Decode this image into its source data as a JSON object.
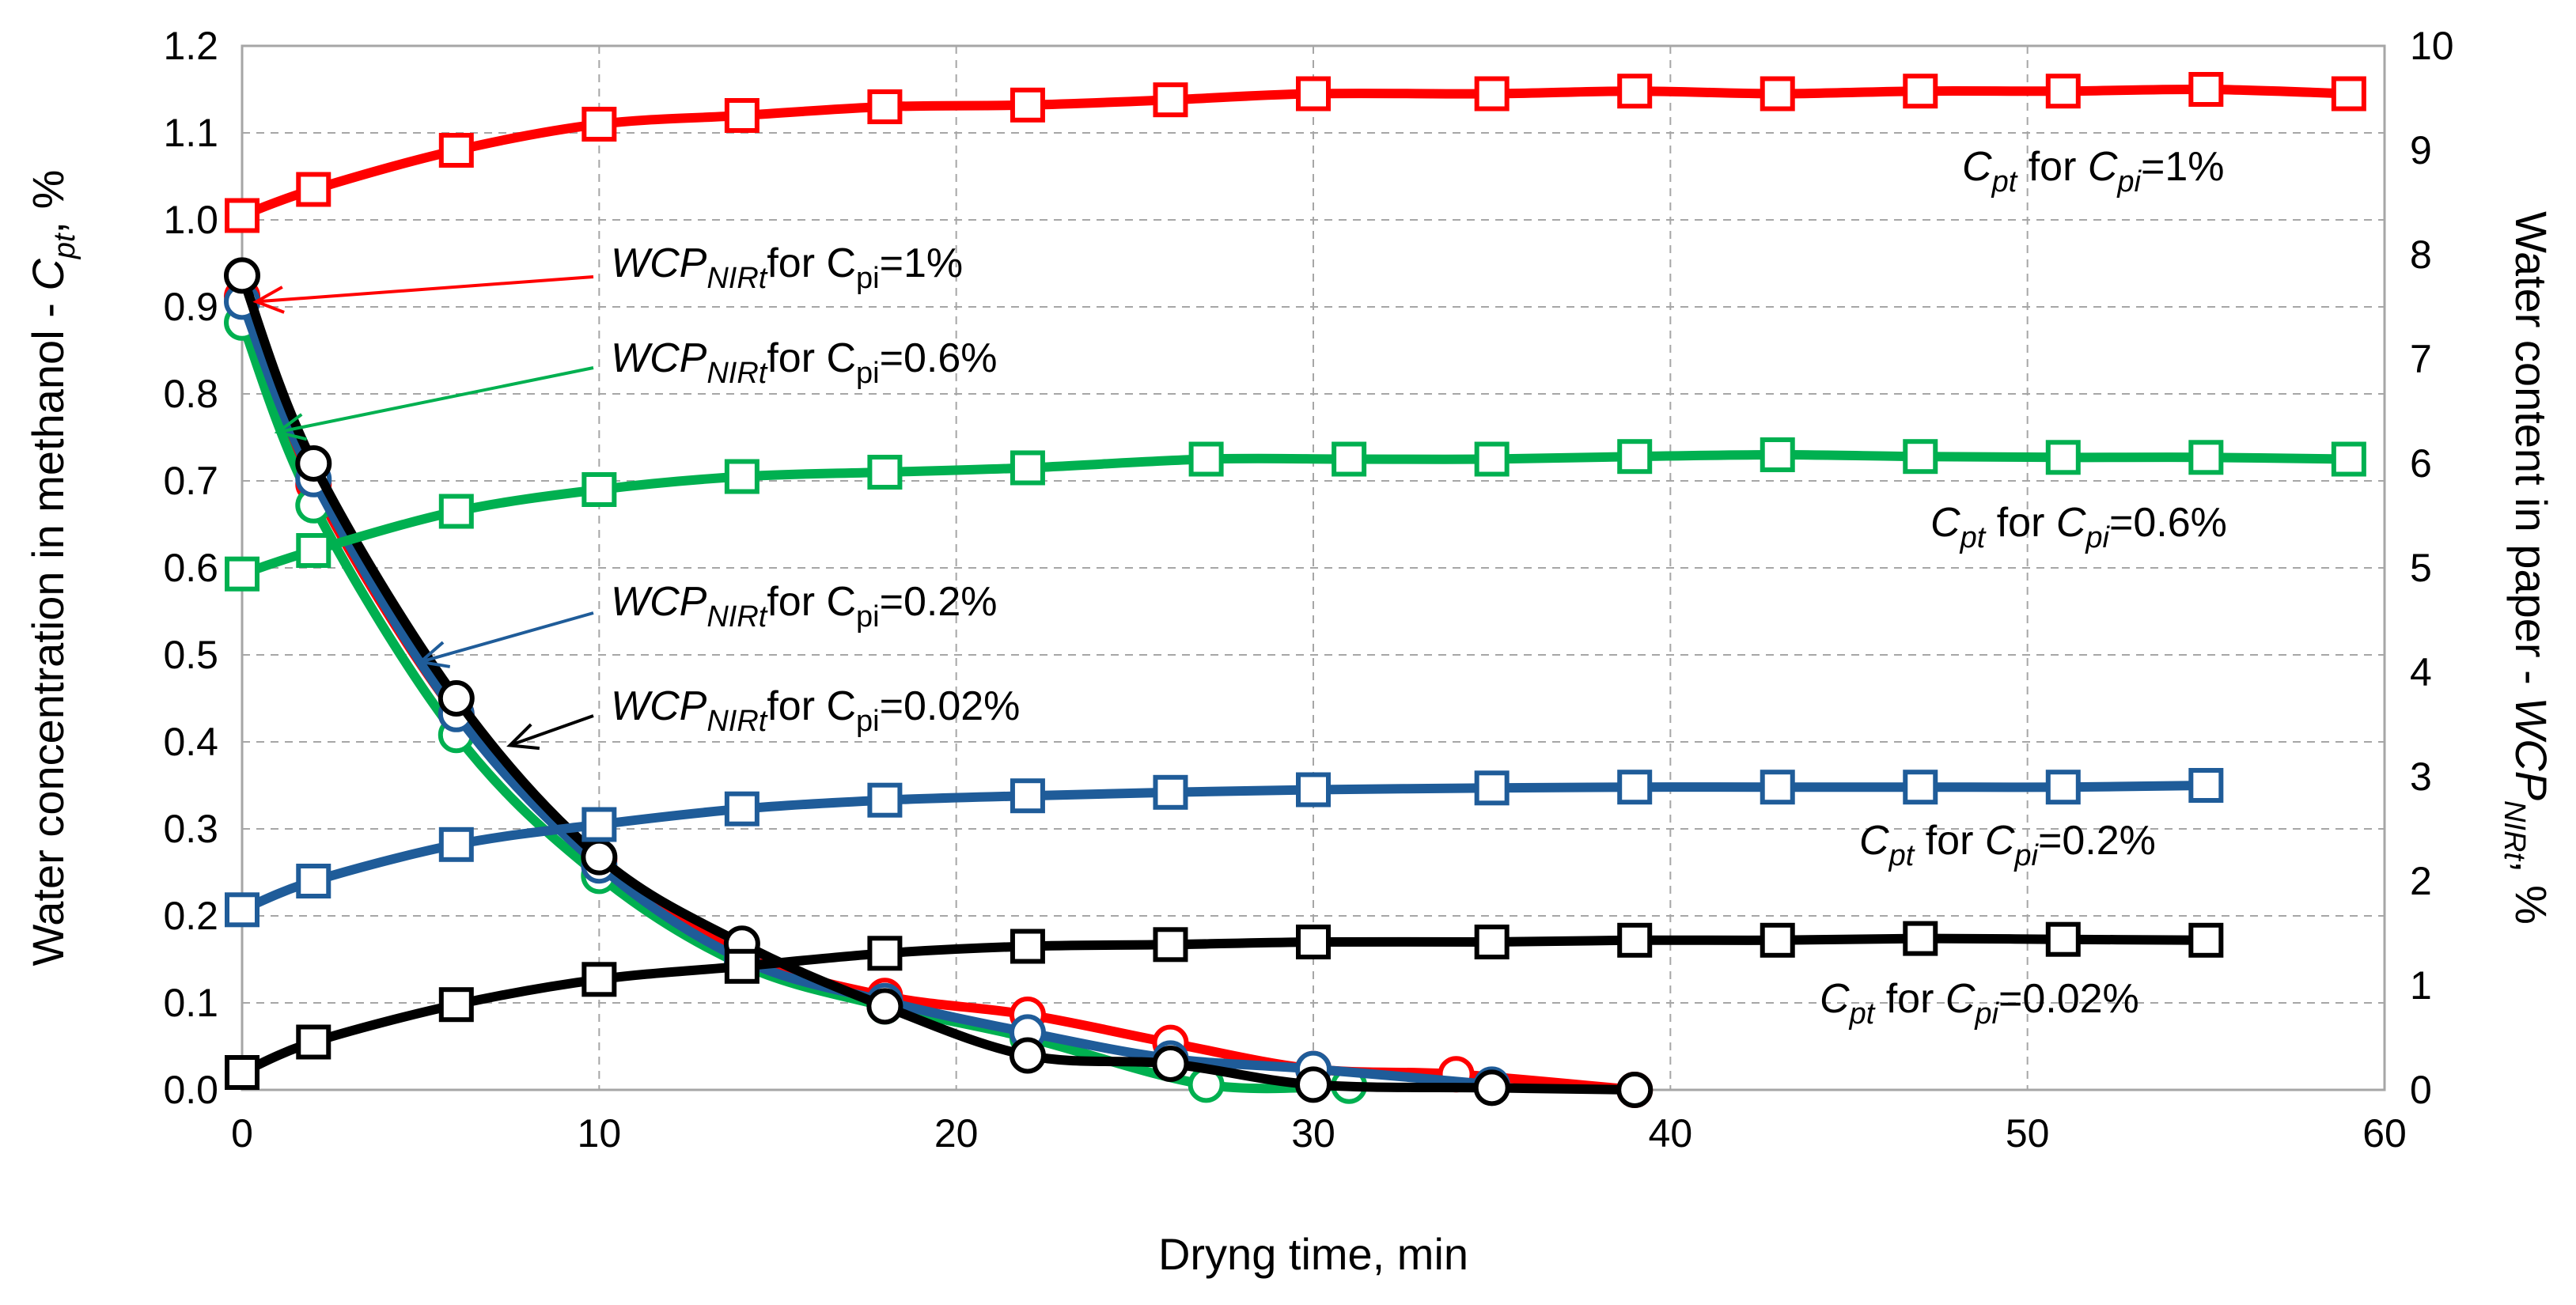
{
  "chart_data": {
    "type": "line",
    "title": "",
    "xlabel": "Dryng time, min",
    "ylabel_left": {
      "main": "Water concentration in methanol - ",
      "var": "C",
      "sub": "pt",
      "tail": ", %"
    },
    "ylabel_right": {
      "main": "Water content in paper - ",
      "var": "WCP",
      "sub": "NIRt",
      "tail": ", %"
    },
    "xlim": [
      0,
      60
    ],
    "ylim_left": [
      0,
      1.2
    ],
    "ylim_right": [
      0,
      10
    ],
    "grid": true,
    "x_ticks": [
      "0",
      "10",
      "20",
      "30",
      "40",
      "50",
      "60"
    ],
    "y_left_ticks": [
      "0.0",
      "0.1",
      "0.2",
      "0.3",
      "0.4",
      "0.5",
      "0.6",
      "0.7",
      "0.8",
      "0.9",
      "1.0",
      "1.1",
      "1.2"
    ],
    "y_right_ticks": [
      "0",
      "1",
      "2",
      "3",
      "4",
      "5",
      "6",
      "7",
      "8",
      "9",
      "10"
    ],
    "colors": {
      "red": "#ff0000",
      "green": "#00b050",
      "blue": "#1f5c99",
      "black": "#000000"
    },
    "series": [
      {
        "axis": "left",
        "marker": "square",
        "color": "#ff0000",
        "name": "Cpt for Cpi=1%",
        "x": [
          0,
          2,
          6,
          10,
          14,
          18,
          22,
          26,
          30,
          35,
          39,
          43,
          47,
          51,
          55,
          59
        ],
        "y": [
          1.005,
          1.035,
          1.08,
          1.11,
          1.12,
          1.13,
          1.132,
          1.138,
          1.145,
          1.145,
          1.148,
          1.145,
          1.148,
          1.148,
          1.15,
          1.145
        ]
      },
      {
        "axis": "left",
        "marker": "square",
        "color": "#00b050",
        "name": "Cpt for Cpi=0.6%",
        "x": [
          0,
          2,
          6,
          10,
          14,
          18,
          22,
          27,
          31,
          35,
          39,
          43,
          47,
          51,
          55,
          59
        ],
        "y": [
          0.593,
          0.62,
          0.665,
          0.69,
          0.705,
          0.71,
          0.715,
          0.725,
          0.725,
          0.725,
          0.728,
          0.73,
          0.728,
          0.727,
          0.727,
          0.725
        ]
      },
      {
        "axis": "left",
        "marker": "square",
        "color": "#1f5c99",
        "name": "Cpt for Cpi=0.2%",
        "x": [
          0,
          2,
          6,
          10,
          14,
          18,
          22,
          26,
          30,
          35,
          39,
          43,
          47,
          51,
          55
        ],
        "y": [
          0.207,
          0.24,
          0.282,
          0.305,
          0.323,
          0.333,
          0.338,
          0.342,
          0.345,
          0.347,
          0.348,
          0.348,
          0.348,
          0.348,
          0.35
        ]
      },
      {
        "axis": "left",
        "marker": "square",
        "color": "#000000",
        "name": "Cpt for Cpi=0.02%",
        "x": [
          0,
          2,
          6,
          10,
          14,
          18,
          22,
          26,
          30,
          35,
          39,
          43,
          47,
          51,
          55
        ],
        "y": [
          0.02,
          0.055,
          0.098,
          0.127,
          0.142,
          0.157,
          0.165,
          0.167,
          0.17,
          0.17,
          0.172,
          0.172,
          0.174,
          0.173,
          0.172
        ]
      },
      {
        "axis": "right",
        "marker": "circle",
        "color": "#ff0000",
        "name": "WCPNIRt for Cpi=1%",
        "x": [
          0,
          2,
          6,
          10,
          14,
          18,
          22,
          26,
          30,
          34,
          39
        ],
        "y": [
          7.6,
          5.8,
          3.6,
          2.2,
          1.3,
          0.9,
          0.72,
          0.45,
          0.2,
          0.15,
          0.0
        ]
      },
      {
        "axis": "right",
        "marker": "circle",
        "color": "#00b050",
        "name": "WCPNIRt for Cpi=0.6%",
        "x": [
          0,
          2,
          6,
          10,
          14,
          18,
          22,
          27,
          31
        ],
        "y": [
          7.35,
          5.6,
          3.4,
          2.05,
          1.2,
          0.8,
          0.5,
          0.05,
          0.04
        ]
      },
      {
        "axis": "right",
        "marker": "circle",
        "color": "#1f5c99",
        "name": "WCPNIRt for Cpi=0.2%",
        "x": [
          0,
          2,
          6,
          10,
          14,
          18,
          22,
          26,
          30,
          35
        ],
        "y": [
          7.55,
          5.85,
          3.6,
          2.15,
          1.25,
          0.85,
          0.55,
          0.3,
          0.2,
          0.05
        ]
      },
      {
        "axis": "right",
        "marker": "circle",
        "color": "#000000",
        "name": "WCPNIRt for Cpi=0.02%",
        "x": [
          0,
          2,
          6,
          10,
          14,
          18,
          22,
          26,
          30,
          35,
          39
        ],
        "y": [
          7.8,
          6.0,
          3.75,
          2.23,
          1.4,
          0.8,
          0.33,
          0.25,
          0.05,
          0.02,
          0.0
        ]
      }
    ],
    "annotations": [
      {
        "italic": "C",
        "sub": "pt",
        "text": " for ",
        "italic2": "C",
        "sub2": "pi",
        "tail": "=1%",
        "color": "#000000"
      },
      {
        "italic": "C",
        "sub": "pt",
        "text": " for ",
        "italic2": "C",
        "sub2": "pi",
        "tail": "=0.6%",
        "color": "#000000"
      },
      {
        "italic": "C",
        "sub": "pt",
        "text": " for ",
        "italic2": "C",
        "sub2": "pi",
        "tail": "=0.2%",
        "color": "#000000"
      },
      {
        "italic": "C",
        "sub": "pt",
        "text": " for ",
        "italic2": "C",
        "sub2": "pi",
        "tail": "=0.02%",
        "color": "#000000"
      },
      {
        "italic": "WCP",
        "sub": "NIRt",
        "text": "for C",
        "sub2": "pi",
        "tail": "=1%",
        "arrow_color": "#ff0000",
        "arrow_to_x": 0.4,
        "arrow_to_y_right": 7.55
      },
      {
        "italic": "WCP",
        "sub": "NIRt",
        "text": "for C",
        "sub2": "pi",
        "tail": "=0.6%",
        "arrow_color": "#00b050",
        "arrow_to_x": 1.0,
        "arrow_to_y_right": 6.3
      },
      {
        "italic": "WCP",
        "sub": "NIRt",
        "text": "for C",
        "sub2": "pi",
        "tail": "=0.2%",
        "arrow_color": "#1f5c99",
        "arrow_to_x": 5.0,
        "arrow_to_y_right": 4.1
      },
      {
        "italic": "WCP",
        "sub": "NIRt",
        "text": "for C",
        "sub2": "pi",
        "tail": "=0.02%",
        "arrow_color": "#000000",
        "arrow_to_x": 7.5,
        "arrow_to_y_right": 3.3
      }
    ]
  }
}
